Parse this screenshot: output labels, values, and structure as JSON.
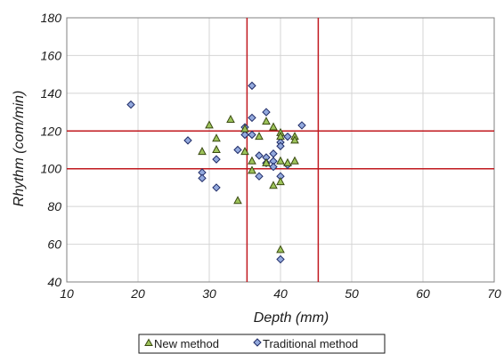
{
  "colors": {
    "new_fill": "#9dc35a",
    "new_stroke": "#3a4a12",
    "trad_fill": "#93a9dd",
    "trad_stroke": "#1e2a66",
    "threshold": "#c0181e",
    "grid": "#d4d4d4",
    "axis": "#808080"
  },
  "chart_data": {
    "type": "scatter",
    "title": "",
    "xlabel": "Depth (mm)",
    "ylabel": "Rhythm (com/min)",
    "xlim": [
      10,
      70
    ],
    "ylim": [
      40,
      180
    ],
    "x_ticks": [
      "10",
      "20",
      "30",
      "40",
      "50",
      "60",
      "70"
    ],
    "y_ticks": [
      "40",
      "60",
      "80",
      "100",
      "120",
      "140",
      "160",
      "180"
    ],
    "grid": true,
    "legend_position": "bottom-center",
    "reference_lines": {
      "vertical_x": [
        35.3,
        45.3
      ],
      "horizontal_y": [
        100,
        120
      ]
    },
    "series": [
      {
        "name": "New method",
        "marker": "triangle",
        "points": [
          [
            29,
            109
          ],
          [
            30,
            123
          ],
          [
            31,
            116
          ],
          [
            31,
            110
          ],
          [
            33,
            126
          ],
          [
            34,
            83
          ],
          [
            35,
            121
          ],
          [
            35,
            109
          ],
          [
            36,
            104
          ],
          [
            36,
            99
          ],
          [
            37,
            117
          ],
          [
            38,
            125
          ],
          [
            38,
            103
          ],
          [
            39,
            122
          ],
          [
            39,
            91
          ],
          [
            40,
            119
          ],
          [
            40,
            117
          ],
          [
            40,
            104
          ],
          [
            40,
            93
          ],
          [
            40,
            57
          ],
          [
            41,
            103
          ],
          [
            42,
            117
          ],
          [
            42,
            115
          ],
          [
            42,
            104
          ]
        ]
      },
      {
        "name": "Traditional method",
        "marker": "diamond",
        "points": [
          [
            19,
            134
          ],
          [
            27,
            115
          ],
          [
            29,
            98
          ],
          [
            29,
            95
          ],
          [
            31,
            105
          ],
          [
            31,
            90
          ],
          [
            34,
            110
          ],
          [
            35,
            122
          ],
          [
            35,
            118
          ],
          [
            36,
            144
          ],
          [
            36,
            127
          ],
          [
            36,
            118
          ],
          [
            37,
            107
          ],
          [
            37,
            96
          ],
          [
            38,
            130
          ],
          [
            38,
            106
          ],
          [
            38,
            103
          ],
          [
            39,
            108
          ],
          [
            39,
            104
          ],
          [
            39,
            101
          ],
          [
            40,
            114
          ],
          [
            40,
            112
          ],
          [
            40,
            96
          ],
          [
            40,
            52
          ],
          [
            41,
            117
          ],
          [
            41,
            102
          ],
          [
            43,
            123
          ]
        ]
      }
    ]
  }
}
